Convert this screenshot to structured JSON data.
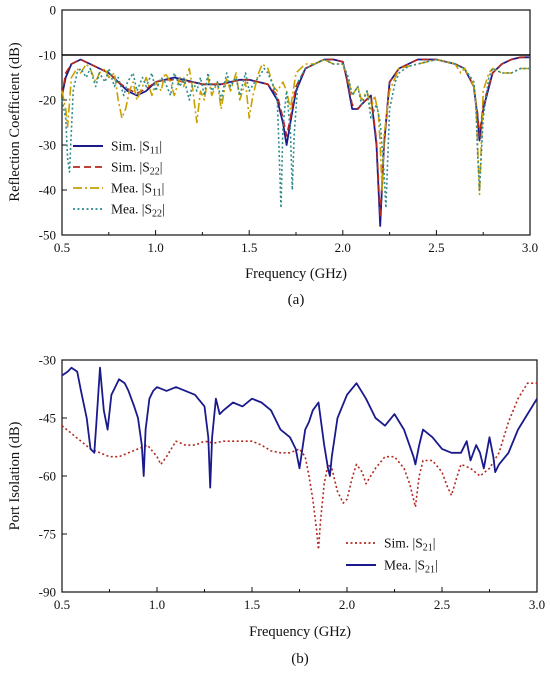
{
  "chart_data": [
    {
      "type": "line",
      "caption": "(a)",
      "xlabel": "Frequency (GHz)",
      "ylabel": "Reflection Coefficient (dB)",
      "xlim": [
        0.5,
        3.0
      ],
      "ylim": [
        -50,
        0
      ],
      "xticks": [
        "0.5",
        "1.0",
        "1.5",
        "2.0",
        "2.5",
        "3.0"
      ],
      "yticks": [
        "0",
        "-10",
        "-20",
        "-30",
        "-40",
        "-50"
      ],
      "grid": false,
      "legend": "bottom-left",
      "reference_line_y": -10,
      "series": [
        {
          "name": "Sim. |S11|",
          "legend_base": "Sim. |S",
          "legend_sub": "11",
          "color": "#1a1a8c",
          "dash": "solid",
          "x": [
            0.5,
            0.52,
            0.55,
            0.6,
            0.65,
            0.7,
            0.75,
            0.8,
            0.85,
            0.9,
            0.95,
            1.0,
            1.05,
            1.1,
            1.15,
            1.2,
            1.25,
            1.3,
            1.35,
            1.4,
            1.45,
            1.5,
            1.55,
            1.6,
            1.65,
            1.68,
            1.7,
            1.72,
            1.75,
            1.8,
            1.85,
            1.9,
            1.95,
            2.0,
            2.02,
            2.05,
            2.08,
            2.1,
            2.15,
            2.18,
            2.2,
            2.22,
            2.25,
            2.3,
            2.35,
            2.4,
            2.45,
            2.5,
            2.55,
            2.6,
            2.65,
            2.7,
            2.72,
            2.73,
            2.75,
            2.8,
            2.85,
            2.9,
            2.95,
            3.0
          ],
          "y": [
            -19,
            -15,
            -12,
            -11,
            -12,
            -13,
            -14,
            -16,
            -18,
            -19,
            -18,
            -16,
            -15.5,
            -15,
            -15.5,
            -16,
            -16.5,
            -16.5,
            -16.5,
            -16,
            -15.5,
            -15.5,
            -16,
            -16.5,
            -20,
            -25,
            -30,
            -25,
            -18,
            -13,
            -12,
            -11,
            -11,
            -11.5,
            -15,
            -22,
            -22,
            -21,
            -19,
            -30,
            -48,
            -30,
            -16,
            -13,
            -12,
            -11,
            -11,
            -11,
            -11.5,
            -12,
            -13,
            -17,
            -24,
            -29,
            -22,
            -14,
            -12,
            -11,
            -10.5,
            -10.5
          ]
        },
        {
          "name": "Sim. |S22|",
          "legend_base": "Sim. |S",
          "legend_sub": "22",
          "color": "#b4281e",
          "dash": "dashed",
          "x": [
            0.5,
            0.52,
            0.55,
            0.6,
            0.65,
            0.7,
            0.75,
            0.8,
            0.85,
            0.9,
            0.95,
            1.0,
            1.05,
            1.1,
            1.15,
            1.2,
            1.25,
            1.3,
            1.35,
            1.4,
            1.45,
            1.5,
            1.55,
            1.6,
            1.65,
            1.68,
            1.7,
            1.72,
            1.75,
            1.8,
            1.85,
            1.9,
            1.95,
            2.0,
            2.02,
            2.05,
            2.08,
            2.1,
            2.15,
            2.18,
            2.2,
            2.22,
            2.25,
            2.3,
            2.35,
            2.4,
            2.45,
            2.5,
            2.55,
            2.6,
            2.65,
            2.7,
            2.72,
            2.73,
            2.75,
            2.8,
            2.85,
            2.9,
            2.95,
            3.0
          ],
          "y": [
            -19,
            -14,
            -12,
            -11,
            -12,
            -13,
            -14,
            -16,
            -17.5,
            -18.5,
            -17.5,
            -16,
            -15.5,
            -15.5,
            -16,
            -16,
            -16.5,
            -16.5,
            -16.5,
            -16,
            -15.5,
            -15.5,
            -16,
            -16.5,
            -19,
            -24,
            -28,
            -24,
            -17,
            -13,
            -12,
            -11,
            -11,
            -11.5,
            -15,
            -21,
            -22,
            -21,
            -19,
            -29,
            -46,
            -30,
            -16,
            -13,
            -12,
            -11,
            -11,
            -11,
            -11.5,
            -12,
            -13,
            -17,
            -23,
            -28,
            -21,
            -14,
            -12,
            -11,
            -10.5,
            -10.5
          ]
        },
        {
          "name": "Mea. |S11|",
          "legend_base": "Mea. |S",
          "legend_sub": "11",
          "color": "#c8a000",
          "dash": "dashdot",
          "x": [
            0.5,
            0.52,
            0.53,
            0.55,
            0.58,
            0.6,
            0.63,
            0.65,
            0.68,
            0.7,
            0.73,
            0.75,
            0.78,
            0.8,
            0.82,
            0.84,
            0.86,
            0.88,
            0.9,
            0.93,
            0.95,
            0.98,
            1.0,
            1.03,
            1.05,
            1.08,
            1.1,
            1.13,
            1.15,
            1.18,
            1.2,
            1.22,
            1.24,
            1.26,
            1.28,
            1.3,
            1.33,
            1.35,
            1.38,
            1.4,
            1.43,
            1.45,
            1.48,
            1.5,
            1.52,
            1.55,
            1.57,
            1.6,
            1.63,
            1.65,
            1.68,
            1.7,
            1.72,
            1.75,
            1.8,
            1.85,
            1.9,
            1.95,
            2.0,
            2.02,
            2.05,
            2.08,
            2.1,
            2.13,
            2.15,
            2.17,
            2.19,
            2.2,
            2.21,
            2.22,
            2.25,
            2.28,
            2.3,
            2.35,
            2.4,
            2.45,
            2.5,
            2.55,
            2.6,
            2.63,
            2.65,
            2.68,
            2.7,
            2.71,
            2.72,
            2.73,
            2.74,
            2.75,
            2.78,
            2.8,
            2.85,
            2.9,
            2.95,
            3.0
          ],
          "y": [
            -18,
            -22,
            -26,
            -15,
            -13,
            -14,
            -12,
            -13,
            -16,
            -14,
            -13,
            -15,
            -14,
            -20,
            -24,
            -22,
            -18,
            -16,
            -20,
            -17,
            -15,
            -19,
            -16,
            -18,
            -14,
            -16,
            -19,
            -15,
            -17,
            -13,
            -18,
            -25,
            -18,
            -20,
            -15,
            -19,
            -16,
            -22,
            -15,
            -18,
            -14,
            -20,
            -16,
            -24,
            -19,
            -14,
            -12,
            -13,
            -17,
            -18,
            -16,
            -18,
            -22,
            -14,
            -12,
            -12,
            -11,
            -12,
            -12,
            -14,
            -19,
            -17,
            -20,
            -18,
            -22,
            -19,
            -23,
            -30,
            -40,
            -28,
            -18,
            -15,
            -13,
            -12.5,
            -12,
            -11.5,
            -11,
            -11.5,
            -12,
            -14,
            -13,
            -15,
            -17,
            -20,
            -30,
            -41,
            -30,
            -18,
            -14,
            -13,
            -14,
            -14,
            -13,
            -13
          ]
        },
        {
          "name": "Mea. |S22|",
          "legend_base": "Mea. |S",
          "legend_sub": "22",
          "color": "#2e8b8b",
          "dash": "dotted",
          "x": [
            0.5,
            0.52,
            0.53,
            0.54,
            0.56,
            0.58,
            0.6,
            0.63,
            0.65,
            0.68,
            0.7,
            0.73,
            0.75,
            0.78,
            0.8,
            0.83,
            0.85,
            0.88,
            0.9,
            0.93,
            0.95,
            0.98,
            1.0,
            1.03,
            1.05,
            1.08,
            1.1,
            1.13,
            1.15,
            1.18,
            1.2,
            1.22,
            1.24,
            1.26,
            1.28,
            1.3,
            1.33,
            1.35,
            1.38,
            1.4,
            1.43,
            1.45,
            1.48,
            1.5,
            1.53,
            1.55,
            1.58,
            1.6,
            1.63,
            1.65,
            1.66,
            1.67,
            1.68,
            1.7,
            1.72,
            1.73,
            1.74,
            1.76,
            1.8,
            1.85,
            1.9,
            1.95,
            2.0,
            2.03,
            2.05,
            2.08,
            2.1,
            2.13,
            2.15,
            2.18,
            2.2,
            2.22,
            2.23,
            2.25,
            2.28,
            2.3,
            2.35,
            2.4,
            2.45,
            2.5,
            2.55,
            2.6,
            2.65,
            2.7,
            2.71,
            2.72,
            2.73,
            2.75,
            2.78,
            2.8,
            2.85,
            2.9,
            2.95,
            3.0
          ],
          "y": [
            -20,
            -24,
            -33,
            -36,
            -18,
            -14,
            -13,
            -15,
            -13,
            -17,
            -14,
            -16,
            -13,
            -17,
            -15,
            -19,
            -16,
            -14,
            -18,
            -15,
            -17,
            -14,
            -18,
            -15,
            -16,
            -19,
            -14,
            -17,
            -15,
            -20,
            -16,
            -18,
            -15,
            -19,
            -14,
            -18,
            -16,
            -20,
            -14,
            -17,
            -15,
            -19,
            -14,
            -18,
            -16,
            -15,
            -13,
            -14,
            -17,
            -20,
            -32,
            -44,
            -26,
            -18,
            -27,
            -40,
            -28,
            -16,
            -13,
            -12,
            -11,
            -12,
            -12,
            -15,
            -19,
            -17,
            -21,
            -18,
            -24,
            -21,
            -25,
            -36,
            -44,
            -22,
            -16,
            -14,
            -12.5,
            -12,
            -11.5,
            -11,
            -11.5,
            -12,
            -13,
            -16,
            -20,
            -32,
            -40,
            -24,
            -15,
            -13,
            -14,
            -14,
            -13,
            -13
          ]
        }
      ]
    },
    {
      "type": "line",
      "caption": "(b)",
      "xlabel": "Frequency (GHz)",
      "ylabel": "Port Isolation (dB)",
      "xlim": [
        0.5,
        3.0
      ],
      "ylim": [
        -90,
        -30
      ],
      "xticks": [
        "0.5",
        "1.0",
        "1.5",
        "2.0",
        "2.5",
        "3.0"
      ],
      "yticks": [
        "-30",
        "-45",
        "-60",
        "-75",
        "-90"
      ],
      "grid": false,
      "legend": "bottom-center",
      "series": [
        {
          "name": "Sim. |S21|",
          "legend_base": "Sim. |S",
          "legend_sub": "21",
          "color": "#b4281e",
          "dash": "dotted",
          "x": [
            0.5,
            0.55,
            0.6,
            0.65,
            0.7,
            0.75,
            0.8,
            0.85,
            0.9,
            0.95,
            1.0,
            1.02,
            1.05,
            1.1,
            1.15,
            1.2,
            1.25,
            1.3,
            1.35,
            1.4,
            1.45,
            1.5,
            1.55,
            1.6,
            1.65,
            1.7,
            1.75,
            1.78,
            1.8,
            1.82,
            1.84,
            1.85,
            1.86,
            1.88,
            1.9,
            1.92,
            1.95,
            1.98,
            2.0,
            2.03,
            2.05,
            2.08,
            2.1,
            2.15,
            2.2,
            2.25,
            2.3,
            2.33,
            2.35,
            2.36,
            2.38,
            2.4,
            2.45,
            2.5,
            2.53,
            2.55,
            2.58,
            2.6,
            2.65,
            2.7,
            2.75,
            2.8,
            2.85,
            2.9,
            2.95,
            3.0
          ],
          "y": [
            -47,
            -49,
            -51,
            -53,
            -54,
            -55,
            -55,
            -54,
            -53,
            -52,
            -55,
            -57,
            -55,
            -51,
            -52,
            -52,
            -51,
            -51.5,
            -51,
            -51,
            -51,
            -51,
            -52,
            -53.5,
            -54,
            -54,
            -53,
            -55,
            -60,
            -66,
            -74,
            -79,
            -72,
            -62,
            -57,
            -58,
            -64,
            -67,
            -66,
            -60,
            -57,
            -59,
            -62,
            -58,
            -55,
            -55,
            -58,
            -62,
            -66,
            -68,
            -60,
            -56,
            -56,
            -59,
            -63,
            -65,
            -60,
            -57,
            -58,
            -60,
            -58,
            -54,
            -46,
            -40,
            -36,
            -36
          ]
        },
        {
          "name": "Mea. |S21|",
          "legend_base": "Mea. |S",
          "legend_sub": "21",
          "color": "#1a1a8c",
          "dash": "solid",
          "x": [
            0.5,
            0.53,
            0.55,
            0.58,
            0.6,
            0.63,
            0.65,
            0.67,
            0.68,
            0.7,
            0.72,
            0.74,
            0.76,
            0.78,
            0.8,
            0.83,
            0.85,
            0.88,
            0.9,
            0.92,
            0.93,
            0.94,
            0.96,
            0.98,
            1.0,
            1.05,
            1.1,
            1.15,
            1.2,
            1.25,
            1.27,
            1.28,
            1.29,
            1.31,
            1.33,
            1.35,
            1.4,
            1.45,
            1.5,
            1.55,
            1.6,
            1.65,
            1.7,
            1.73,
            1.75,
            1.78,
            1.8,
            1.82,
            1.85,
            1.88,
            1.9,
            1.91,
            1.92,
            1.95,
            2.0,
            2.05,
            2.1,
            2.15,
            2.2,
            2.25,
            2.3,
            2.35,
            2.36,
            2.38,
            2.4,
            2.45,
            2.5,
            2.55,
            2.6,
            2.63,
            2.65,
            2.68,
            2.7,
            2.72,
            2.75,
            2.77,
            2.78,
            2.8,
            2.85,
            2.9,
            2.95,
            3.0
          ],
          "y": [
            -34,
            -33,
            -32,
            -33,
            -38,
            -45,
            -53,
            -54,
            -47,
            -32,
            -43,
            -48,
            -39,
            -37,
            -35,
            -36,
            -38,
            -42,
            -45,
            -52,
            -60,
            -48,
            -40,
            -38,
            -37,
            -38,
            -37,
            -38,
            -39,
            -42,
            -50,
            -63,
            -50,
            -40,
            -44,
            -43,
            -41,
            -42,
            -40,
            -41,
            -43,
            -48,
            -50,
            -53,
            -58,
            -48,
            -46,
            -43,
            -41,
            -52,
            -58,
            -60,
            -55,
            -45,
            -39,
            -36,
            -40,
            -45,
            -47,
            -44,
            -48,
            -55,
            -57,
            -52,
            -48,
            -50,
            -53,
            -54,
            -54,
            -51,
            -56,
            -52,
            -54,
            -58,
            -50,
            -55,
            -59,
            -57,
            -54,
            -48,
            -44,
            -40
          ]
        }
      ]
    }
  ]
}
